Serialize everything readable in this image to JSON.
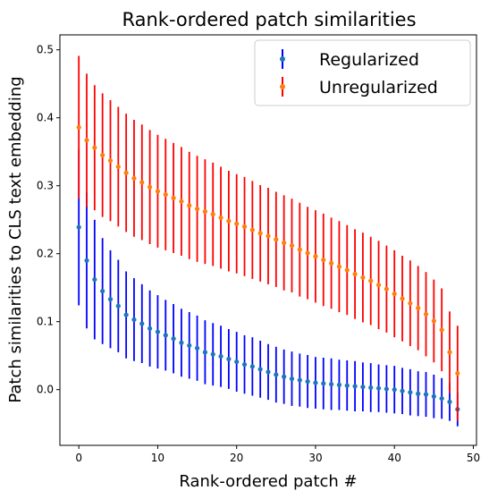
{
  "chart_data": {
    "type": "scatter",
    "title": "Rank-ordered patch similarities",
    "xlabel": "Rank-ordered patch #",
    "ylabel": "Patch similarities to CLS text embedding",
    "xlim": [
      -2.4,
      50.4
    ],
    "ylim": [
      -0.082,
      0.522
    ],
    "xticks": [
      0,
      10,
      20,
      30,
      40,
      50
    ],
    "yticks": [
      0.0,
      0.1,
      0.2,
      0.3,
      0.4,
      0.5
    ],
    "xtick_labels": [
      "0",
      "10",
      "20",
      "30",
      "40",
      "50"
    ],
    "ytick_labels": [
      "0.0",
      "0.1",
      "0.2",
      "0.3",
      "0.4",
      "0.5"
    ],
    "grid": false,
    "legend_position": "top-right",
    "x": [
      0,
      1,
      2,
      3,
      4,
      5,
      6,
      7,
      8,
      9,
      10,
      11,
      12,
      13,
      14,
      15,
      16,
      17,
      18,
      19,
      20,
      21,
      22,
      23,
      24,
      25,
      26,
      27,
      28,
      29,
      30,
      31,
      32,
      33,
      34,
      35,
      36,
      37,
      38,
      39,
      40,
      41,
      42,
      43,
      44,
      45,
      46,
      47,
      48
    ],
    "series": [
      {
        "name": "Regularized",
        "marker_color": "#1f77b4",
        "errorbar_color": "#0000ff",
        "values": [
          0.239,
          0.19,
          0.162,
          0.145,
          0.133,
          0.123,
          0.11,
          0.103,
          0.097,
          0.09,
          0.085,
          0.08,
          0.075,
          0.069,
          0.065,
          0.061,
          0.055,
          0.052,
          0.049,
          0.045,
          0.041,
          0.037,
          0.034,
          0.03,
          0.026,
          0.022,
          0.019,
          0.016,
          0.014,
          0.012,
          0.01,
          0.009,
          0.008,
          0.007,
          0.006,
          0.005,
          0.004,
          0.003,
          0.002,
          0.001,
          0.0,
          -0.002,
          -0.004,
          -0.006,
          -0.007,
          -0.01,
          -0.013,
          -0.018,
          -0.029
        ],
        "errors": [
          0.115,
          0.1,
          0.088,
          0.078,
          0.072,
          0.068,
          0.064,
          0.061,
          0.058,
          0.056,
          0.054,
          0.052,
          0.051,
          0.05,
          0.049,
          0.048,
          0.047,
          0.046,
          0.045,
          0.044,
          0.044,
          0.043,
          0.043,
          0.042,
          0.041,
          0.041,
          0.04,
          0.04,
          0.039,
          0.039,
          0.038,
          0.038,
          0.038,
          0.037,
          0.037,
          0.037,
          0.036,
          0.036,
          0.035,
          0.035,
          0.035,
          0.034,
          0.034,
          0.033,
          0.033,
          0.032,
          0.03,
          0.028,
          0.025
        ]
      },
      {
        "name": "Unregularized",
        "marker_color": "#ff7f0e",
        "errorbar_color": "#ff0000",
        "values": [
          0.386,
          0.367,
          0.356,
          0.345,
          0.337,
          0.328,
          0.319,
          0.311,
          0.305,
          0.298,
          0.292,
          0.287,
          0.282,
          0.277,
          0.271,
          0.266,
          0.262,
          0.258,
          0.253,
          0.248,
          0.244,
          0.24,
          0.235,
          0.23,
          0.226,
          0.221,
          0.216,
          0.212,
          0.206,
          0.201,
          0.196,
          0.191,
          0.186,
          0.181,
          0.176,
          0.17,
          0.165,
          0.16,
          0.154,
          0.148,
          0.141,
          0.134,
          0.127,
          0.12,
          0.111,
          0.101,
          0.088,
          0.055,
          0.024
        ],
        "errors": [
          0.105,
          0.098,
          0.092,
          0.091,
          0.089,
          0.088,
          0.087,
          0.086,
          0.085,
          0.084,
          0.083,
          0.082,
          0.081,
          0.08,
          0.079,
          0.078,
          0.077,
          0.076,
          0.075,
          0.074,
          0.073,
          0.073,
          0.072,
          0.071,
          0.071,
          0.07,
          0.07,
          0.069,
          0.069,
          0.068,
          0.068,
          0.068,
          0.067,
          0.067,
          0.066,
          0.066,
          0.066,
          0.065,
          0.065,
          0.064,
          0.064,
          0.063,
          0.063,
          0.062,
          0.062,
          0.061,
          0.061,
          0.06,
          0.07
        ]
      }
    ]
  }
}
